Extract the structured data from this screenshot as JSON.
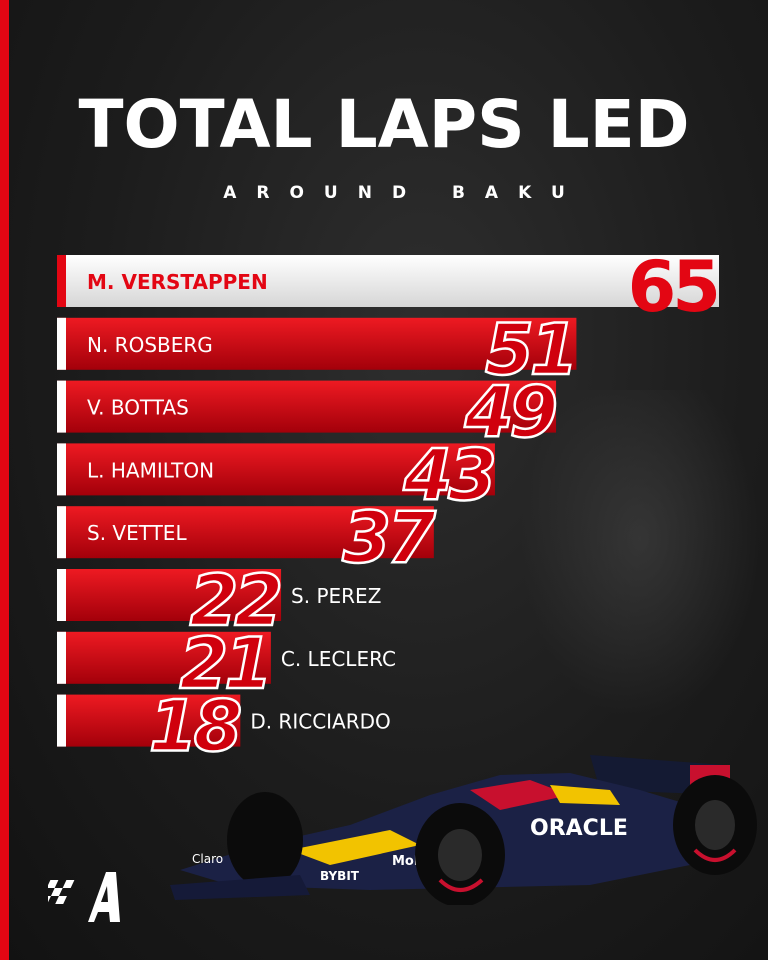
{
  "chart_data": {
    "type": "bar",
    "orientation": "horizontal",
    "title": "TOTAL LAPS LED",
    "subtitle": "AROUND BAKU",
    "categories": [
      "M. VERSTAPPEN",
      "N. ROSBERG",
      "V. BOTTAS",
      "L. HAMILTON",
      "S. VETTEL",
      "S. PEREZ",
      "C. LECLERC",
      "D. RICCIARDO"
    ],
    "values": [
      65,
      51,
      49,
      43,
      37,
      22,
      21,
      18
    ],
    "highlight_index": 0,
    "xlim": [
      0,
      65
    ],
    "grid": false,
    "colors": {
      "bar": "#d0000d",
      "bar_light": "#e8141e",
      "highlight_bar": "#e6e6e6",
      "highlight_text": "#e30613",
      "accent": "#e30613"
    }
  },
  "car": {
    "livery_text": "ORACLE",
    "sponsor_1": "Claro",
    "sponsor_2": "Mobil",
    "sponsor_3": "BYBIT"
  },
  "logo": {
    "icon": "checkered-flag-a-icon"
  }
}
